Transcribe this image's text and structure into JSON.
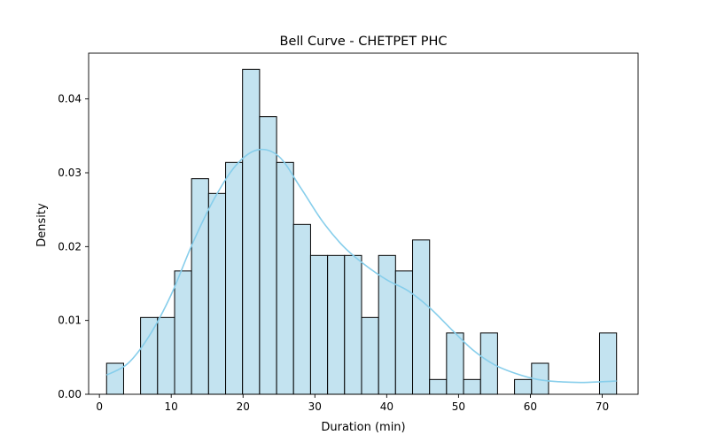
{
  "chart_data": {
    "type": "bar",
    "title": "Bell Curve - CHETPET  PHC",
    "xlabel": "Duration (min)",
    "ylabel": "Density",
    "xlim": [
      -1.5,
      75
    ],
    "ylim": [
      0,
      0.0462
    ],
    "xticks": [
      0,
      10,
      20,
      30,
      40,
      50,
      60,
      70
    ],
    "xtick_labels": [
      "0",
      "10",
      "20",
      "30",
      "40",
      "50",
      "60",
      "70"
    ],
    "yticks": [
      0,
      0.01,
      0.02,
      0.03,
      0.04
    ],
    "ytick_labels": [
      "0.00",
      "0.01",
      "0.02",
      "0.03",
      "0.04"
    ],
    "grid": false,
    "bin_edges": [
      1,
      3.37,
      5.73,
      8.1,
      10.47,
      12.83,
      15.2,
      17.57,
      19.93,
      22.3,
      24.67,
      27.03,
      29.4,
      31.77,
      34.13,
      36.5,
      38.87,
      41.23,
      43.6,
      45.97,
      48.33,
      50.7,
      53.07,
      55.43,
      57.8,
      60.17,
      62.53,
      64.9,
      67.27,
      69.63,
      72
    ],
    "density": [
      0.0042,
      0,
      0.0104,
      0.0104,
      0.0167,
      0.0292,
      0.0272,
      0.0314,
      0.044,
      0.0376,
      0.0314,
      0.023,
      0.0188,
      0.0188,
      0.0188,
      0.0104,
      0.0188,
      0.0167,
      0.0209,
      0.002,
      0.0083,
      0.002,
      0.0083,
      0,
      0.002,
      0.0042,
      0,
      0,
      0,
      0.0083
    ],
    "kde": {
      "x": [
        1,
        4,
        7,
        10,
        13,
        16,
        19,
        22,
        25,
        28,
        31,
        34,
        37,
        40,
        43,
        46,
        49,
        52,
        55,
        58,
        61,
        64,
        67,
        70,
        72
      ],
      "y": [
        0.0026,
        0.0042,
        0.008,
        0.0135,
        0.0205,
        0.0265,
        0.031,
        0.0331,
        0.0322,
        0.028,
        0.0235,
        0.02,
        0.0175,
        0.0155,
        0.014,
        0.0117,
        0.0088,
        0.006,
        0.004,
        0.0028,
        0.002,
        0.0017,
        0.0016,
        0.0017,
        0.0018
      ]
    },
    "colors": {
      "bar_fill": "#c3e3f0",
      "bar_edge": "#000000",
      "kde_line": "#87ceeb"
    }
  }
}
